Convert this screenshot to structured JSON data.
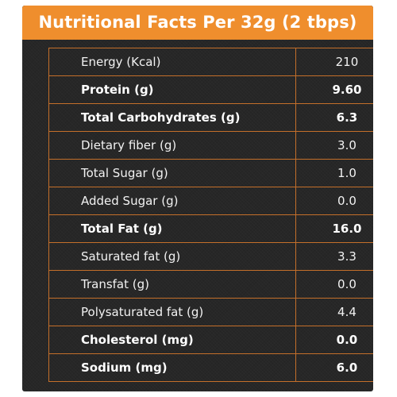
{
  "header": {
    "title": "Nutritional Facts Per 32g (2 tbps)",
    "accent_color": "#ef8e2d",
    "background_color": "#272727"
  },
  "rows": [
    {
      "label": "Energy (Kcal)",
      "value": "210",
      "bold": false
    },
    {
      "label": "Protein (g)",
      "value": "9.60",
      "bold": true
    },
    {
      "label": "Total Carbohydrates (g)",
      "value": "6.3",
      "bold": true
    },
    {
      "label": "Dietary fiber (g)",
      "value": "3.0",
      "bold": false
    },
    {
      "label": "Total Sugar (g)",
      "value": "1.0",
      "bold": false
    },
    {
      "label": "Added Sugar (g)",
      "value": "0.0",
      "bold": false
    },
    {
      "label": "Total Fat (g)",
      "value": "16.0",
      "bold": true
    },
    {
      "label": "Saturated fat (g)",
      "value": "3.3",
      "bold": false
    },
    {
      "label": "Transfat (g)",
      "value": "0.0",
      "bold": false
    },
    {
      "label": "Polysaturated fat (g)",
      "value": "4.4",
      "bold": false
    },
    {
      "label": "Cholesterol (mg)",
      "value": "0.0",
      "bold": true
    },
    {
      "label": "Sodium (mg)",
      "value": "6.0",
      "bold": true
    }
  ]
}
